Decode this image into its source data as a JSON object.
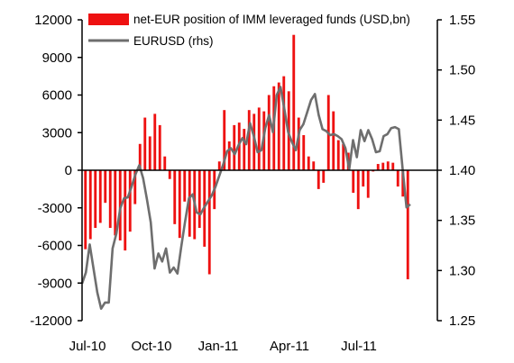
{
  "chart_data": {
    "type": "bar+line",
    "title": "",
    "x_labels": [
      "Jul-10",
      "Oct-10",
      "Jan-11",
      "Apr-11",
      "Jul-11"
    ],
    "left_axis": {
      "min": -12000,
      "max": 12000,
      "ticks": [
        12000,
        9000,
        6000,
        3000,
        0,
        -3000,
        -6000,
        -9000,
        -12000
      ],
      "tick_labels": [
        "12000",
        "9000",
        "6000",
        "3000",
        "0",
        "-3000",
        "-6000",
        "-9000",
        "-12000"
      ]
    },
    "right_axis": {
      "min": 1.25,
      "max": 1.55,
      "ticks": [
        1.55,
        1.5,
        1.45,
        1.4,
        1.35,
        1.3,
        1.25
      ],
      "tick_labels": [
        "1.55",
        "1.50",
        "1.45",
        "1.40",
        "1.35",
        "1.30",
        "1.25"
      ]
    },
    "series": [
      {
        "name": "net-EUR position of IMM leveraged funds (USD,bn)",
        "kind": "bar",
        "axis": "left",
        "color": "#ee1111",
        "values": [
          -6300,
          -5500,
          -4600,
          -4200,
          -2600,
          -4600,
          -5200,
          -5600,
          -6400,
          -4900,
          -2700,
          2100,
          4200,
          2700,
          4500,
          3600,
          1100,
          -700,
          -4300,
          -5400,
          -2500,
          -5300,
          -5500,
          -4600,
          -6100,
          -8300,
          -3100,
          700,
          4800,
          2300,
          3600,
          3800,
          3300,
          4800,
          4500,
          5000,
          4700,
          6000,
          6700,
          7000,
          7500,
          6300,
          10800,
          4200,
          2800,
          1100,
          700,
          -1500,
          -1000,
          6000,
          4700,
          2400,
          2100,
          1400,
          -1800,
          -3100,
          -1300,
          -2200,
          -100,
          500,
          600,
          700,
          600,
          -1300,
          -2100,
          -8700
        ]
      },
      {
        "name": "EURUSD (rhs)",
        "kind": "line",
        "axis": "right",
        "color": "#6e6e6e",
        "values": [
          1.287,
          1.298,
          1.326,
          1.302,
          1.278,
          1.262,
          1.268,
          1.268,
          1.322,
          1.337,
          1.362,
          1.372,
          1.373,
          1.384,
          1.396,
          1.405,
          1.392,
          1.371,
          1.348,
          1.302,
          1.317,
          1.309,
          1.322,
          1.298,
          1.303,
          1.297,
          1.324,
          1.349,
          1.372,
          1.376,
          1.358,
          1.356,
          1.363,
          1.369,
          1.375,
          1.384,
          1.395,
          1.406,
          1.419,
          1.422,
          1.416,
          1.425,
          1.432,
          1.426,
          1.447,
          1.434,
          1.418,
          1.42,
          1.442,
          1.455,
          1.438,
          1.475,
          1.483,
          1.461,
          1.438,
          1.428,
          1.42,
          1.44,
          1.446,
          1.458,
          1.47,
          1.476,
          1.455,
          1.441,
          1.439,
          1.435,
          1.436,
          1.434,
          1.431,
          1.422,
          1.401,
          1.43,
          1.413,
          1.44,
          1.429,
          1.44,
          1.431,
          1.418,
          1.419,
          1.434,
          1.436,
          1.442,
          1.443,
          1.441,
          1.401,
          1.363,
          1.366
        ]
      }
    ],
    "legend_position": "top",
    "grid": false
  },
  "colors": {
    "bar": "#ee1111",
    "line": "#6e6e6e",
    "axis": "#000000"
  }
}
